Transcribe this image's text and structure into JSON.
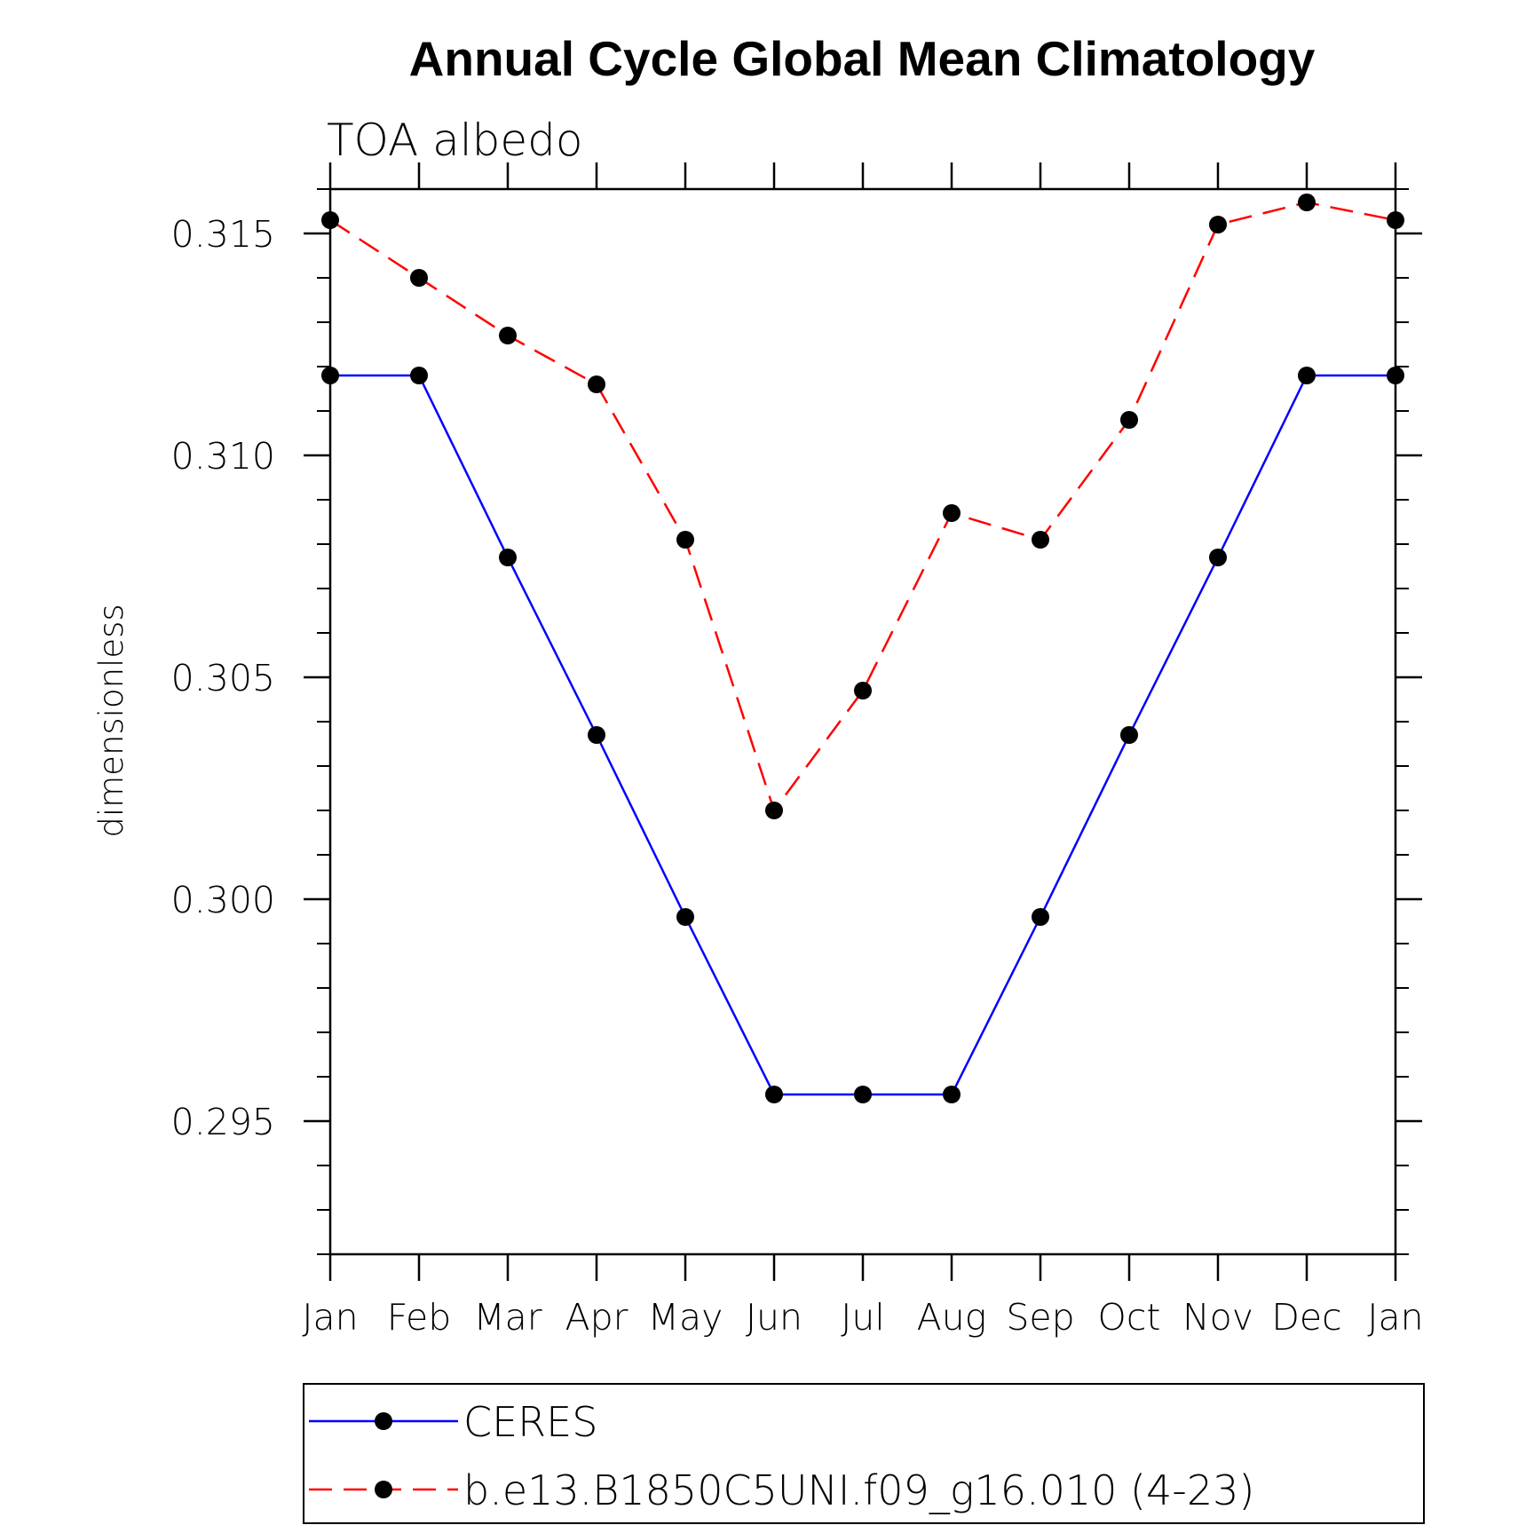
{
  "chart_data": {
    "type": "line",
    "title": "Annual Cycle Global Mean Climatology",
    "subtitle": "TOA albedo",
    "xlabel": "",
    "ylabel": "dimensionless",
    "categories": [
      "Jan",
      "Feb",
      "Mar",
      "Apr",
      "May",
      "Jun",
      "Jul",
      "Aug",
      "Sep",
      "Oct",
      "Nov",
      "Dec",
      "Jan"
    ],
    "ylim": [
      0.292,
      0.316
    ],
    "yticks": [
      "0.295",
      "0.300",
      "0.305",
      "0.310",
      "0.315"
    ],
    "ytick_values": [
      0.295,
      0.3,
      0.305,
      0.31,
      0.315
    ],
    "grid": false,
    "legend_position": "bottom",
    "series": [
      {
        "name": "CERES",
        "color": "#0000ff",
        "line_style": "solid",
        "marker": "filled-circle",
        "values": [
          0.3118,
          0.3118,
          0.3077,
          0.3037,
          0.2996,
          0.2956,
          0.2956,
          0.2956,
          0.2996,
          0.3037,
          0.3077,
          0.3118,
          0.3118
        ]
      },
      {
        "name": "b.e13.B1850C5UNI.f09_g16.010 (4-23)",
        "color": "#ff0000",
        "line_style": "dashed",
        "marker": "filled-circle",
        "values": [
          0.3153,
          0.314,
          0.3127,
          0.3116,
          0.3081,
          0.302,
          0.3047,
          0.3087,
          0.3081,
          0.3108,
          0.3152,
          0.3157,
          0.3153
        ]
      }
    ]
  }
}
